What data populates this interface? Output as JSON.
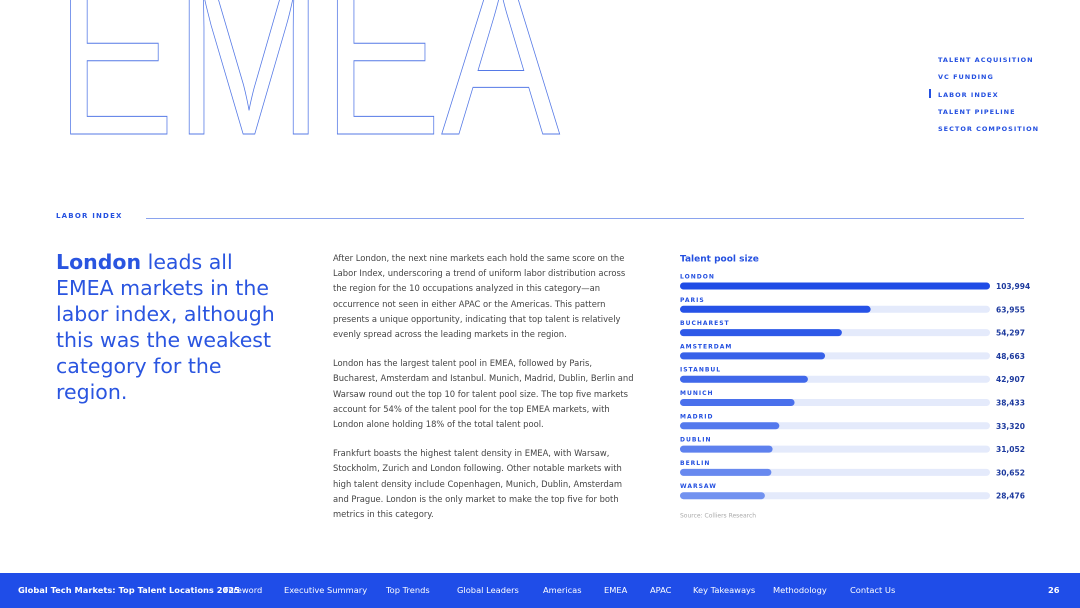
{
  "hero": {
    "title": "EMEA"
  },
  "side_nav": {
    "items": [
      "TALENT ACQUISITION",
      "VC FUNDING",
      "LABOR INDEX",
      "TALENT PIPELINE",
      "SECTOR COMPOSITION"
    ],
    "active_index": 2
  },
  "section": {
    "label": "LABOR INDEX"
  },
  "headline": {
    "emphasis": "London",
    "text": "leads all EMEA markets in the labor index, although this was the weakest category for the region."
  },
  "body": {
    "paragraphs": [
      "After London, the next nine markets each hold the same score on the Labor Index, underscoring a trend of uniform labor distribution across the region for the 10 occupations analyzed in this category—an occurrence not seen in either APAC or the Americas. This pattern presents a unique opportunity, indicating that top talent is relatively evenly spread across the leading markets in the region.",
      "London has the largest talent pool in EMEA, followed by Paris, Bucharest, Amsterdam and Istanbul. Munich, Madrid, Dublin, Berlin and Warsaw round out the top 10 for talent pool size. The top five markets account for 54% of the talent pool for the top EMEA markets, with London alone holding 18% of the total talent pool.",
      "Frankfurt boasts the highest talent density in EMEA, with Warsaw, Stockholm, Zurich and London following. Other notable markets with high talent density include Copenhagen, Munich, Dublin, Amsterdam and Prague. London is the only market to make the top five for both metrics in this category."
    ]
  },
  "chart_data": {
    "type": "bar",
    "orientation": "horizontal",
    "title": "Talent pool size",
    "categories": [
      "LONDON",
      "PARIS",
      "BUCHAREST",
      "AMSTERDAM",
      "ISTANBUL",
      "MUNICH",
      "MADRID",
      "DUBLIN",
      "BERLIN",
      "WARSAW"
    ],
    "values": [
      103994,
      63955,
      54297,
      48663,
      42907,
      38433,
      33320,
      31052,
      30652,
      28476
    ],
    "value_labels": [
      "103,994",
      "63,955",
      "54,297",
      "48,663",
      "42,907",
      "38,433",
      "33,320",
      "31,052",
      "30,652",
      "28,476"
    ],
    "colors": [
      "#1f4ce6",
      "#2652e7",
      "#2e59e8",
      "#3761e9",
      "#4068ea",
      "#4a70ec",
      "#5479ed",
      "#5e81ee",
      "#6889ef",
      "#7292f0"
    ],
    "track_color": "#e4eafb",
    "source": "Source: Colliers Research"
  },
  "footer": {
    "title": "Global Tech Markets: Top Talent Locations 2025",
    "nav": [
      "Foreword",
      "Executive Summary",
      "Top Trends",
      "Global Leaders",
      "Americas",
      "EMEA",
      "APAC",
      "Key Takeaways",
      "Methodology",
      "Contact Us"
    ],
    "page": 26
  }
}
